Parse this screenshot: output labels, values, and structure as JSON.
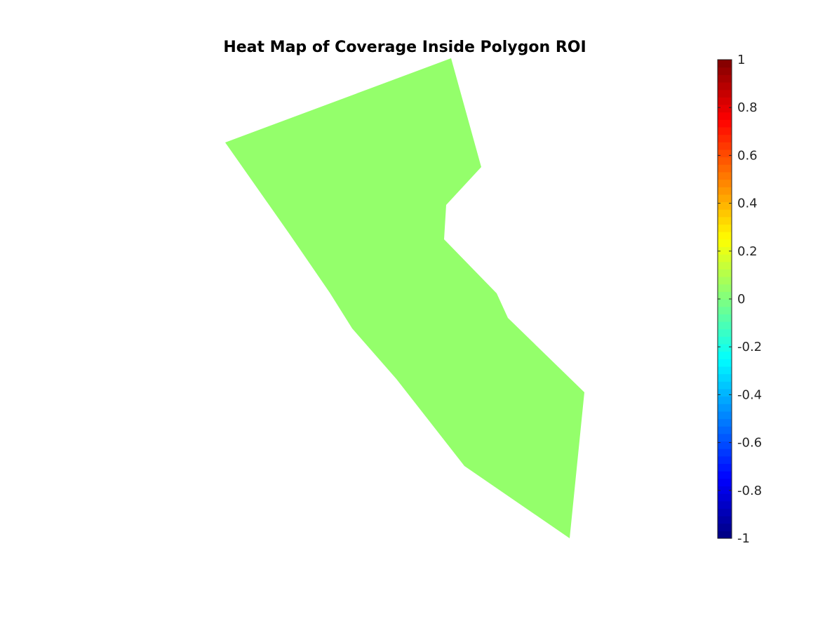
{
  "chart_data": {
    "type": "heatmap",
    "title": "Heat Map of Coverage Inside Polygon ROI",
    "region_value": 0.1,
    "region_color": "#94ff6b",
    "colormap": "jet",
    "colorbar": {
      "min": -1,
      "max": 1,
      "levels": 64,
      "placement": "right",
      "ticks": [
        -1,
        -0.8,
        -0.6,
        -0.4,
        -0.2,
        0,
        0.2,
        0.4,
        0.6,
        0.8,
        1
      ],
      "tick_labels": [
        "-1",
        "-0.8",
        "-0.6",
        "-0.4",
        "-0.2",
        "0",
        "0.2",
        "0.4",
        "0.6",
        "0.8",
        "1"
      ]
    },
    "axes_visible": false,
    "grid": false
  }
}
